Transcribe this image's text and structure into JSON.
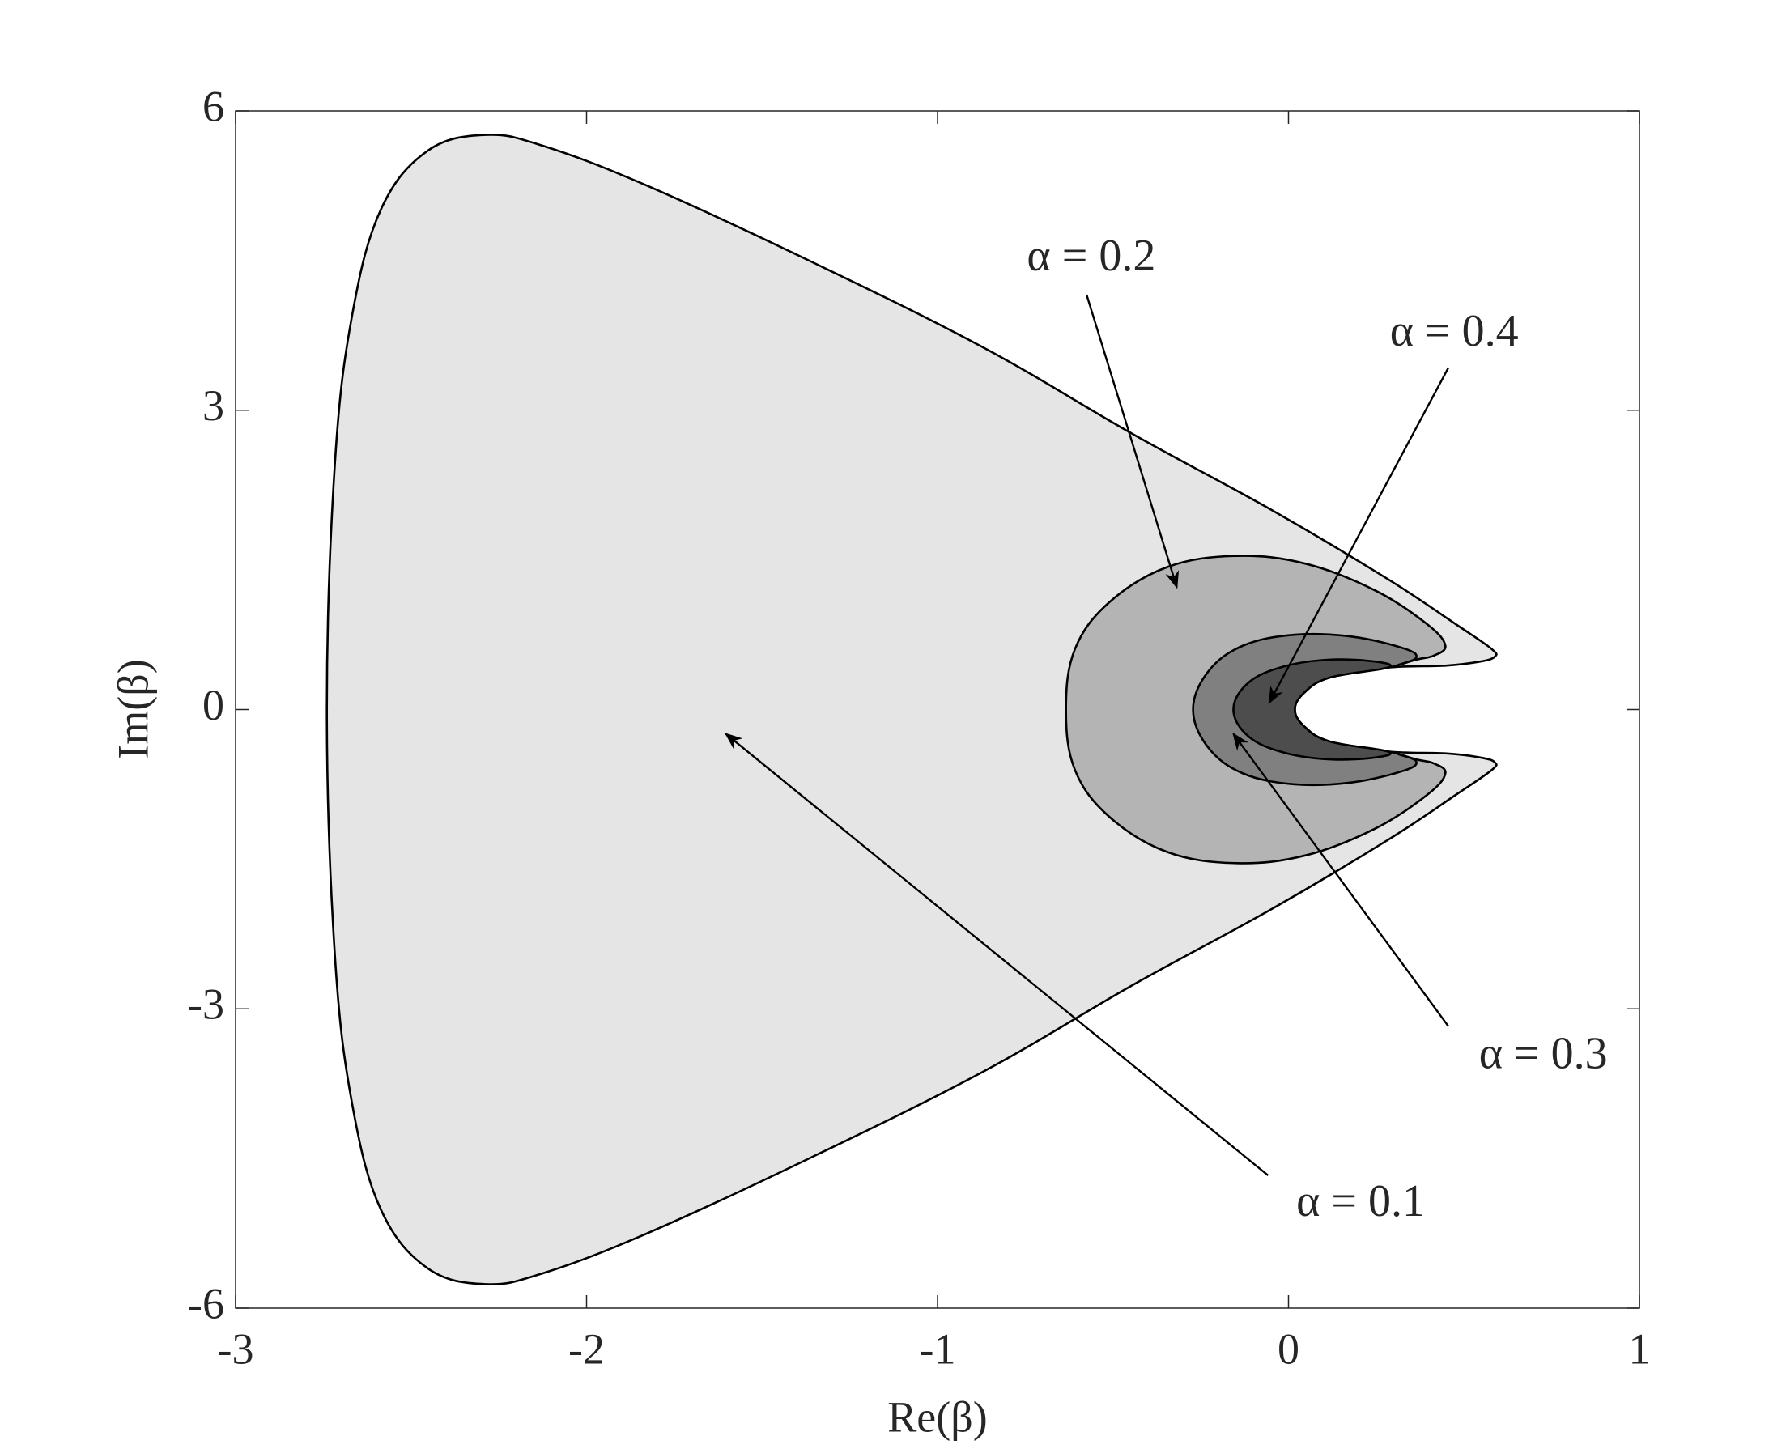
{
  "chart_data": {
    "type": "region",
    "x_label": "Re(β)",
    "y_label": "Im(β)",
    "xlim": [
      -3,
      1
    ],
    "ylim": [
      -6,
      6
    ],
    "xticks": [
      -3,
      -2,
      -1,
      0,
      1
    ],
    "yticks": [
      -6,
      -3,
      0,
      3,
      6
    ],
    "series": [
      {
        "name": "α = 0.1",
        "color": "#e5e5e5",
        "x": [
          -2.74,
          -2.717,
          -2.667,
          -2.585,
          -2.453,
          -2.288,
          -2.124,
          -1.827,
          -1.366,
          -0.87,
          -0.443,
          -0.048,
          0.282,
          0.479,
          0.578,
          0.588,
          0.545,
          0.447,
          0.282,
          0.117,
          0.045,
          0.018,
          0.045,
          0.117,
          0.282,
          0.447,
          0.545,
          0.588,
          0.578,
          0.479,
          0.282,
          -0.048,
          -0.443,
          -0.87,
          -1.366,
          -1.827,
          -2.124,
          -2.288,
          -2.453,
          -2.585,
          -2.667,
          -2.717
        ],
        "values": [
          0,
          2.47,
          3.97,
          5.02,
          5.6,
          5.76,
          5.65,
          5.25,
          4.5,
          3.63,
          2.76,
          2.0,
          1.31,
          0.85,
          0.61,
          0.53,
          0.48,
          0.44,
          0.42,
          0.32,
          0.17,
          0,
          -0.17,
          -0.32,
          -0.42,
          -0.44,
          -0.48,
          -0.53,
          -0.61,
          -0.85,
          -1.31,
          -2.0,
          -2.76,
          -3.63,
          -4.5,
          -5.25,
          -5.65,
          -5.76,
          -5.6,
          -5.02,
          -3.97,
          -2.47
        ]
      },
      {
        "name": "α = 0.2",
        "color": "#b4b4b4",
        "x": [
          -0.634,
          -0.608,
          -0.509,
          -0.344,
          -0.147,
          0.051,
          0.249,
          0.397,
          0.447,
          0.414,
          0.364,
          0.282,
          0.117,
          0.045,
          0.018,
          0.045,
          0.117,
          0.282,
          0.364,
          0.414,
          0.447,
          0.397,
          0.249,
          0.051,
          -0.147,
          -0.344,
          -0.509,
          -0.608
        ],
        "values": [
          0,
          0.61,
          1.08,
          1.43,
          1.54,
          1.46,
          1.19,
          0.85,
          0.64,
          0.54,
          0.5,
          0.42,
          0.32,
          0.17,
          0,
          -0.17,
          -0.32,
          -0.42,
          -0.5,
          -0.54,
          -0.64,
          -0.85,
          -1.19,
          -1.46,
          -1.54,
          -1.43,
          -1.08,
          -0.61
        ]
      },
      {
        "name": "α = 0.3",
        "color": "#808080",
        "x": [
          -0.272,
          -0.229,
          -0.13,
          0.018,
          0.183,
          0.331,
          0.364,
          0.315,
          0.282,
          0.117,
          0.045,
          0.018,
          0.045,
          0.117,
          0.282,
          0.315,
          0.364,
          0.331,
          0.183,
          0.018,
          -0.13,
          -0.229
        ],
        "values": [
          0,
          0.38,
          0.64,
          0.75,
          0.73,
          0.61,
          0.52,
          0.45,
          0.42,
          0.32,
          0.17,
          0,
          -0.17,
          -0.32,
          -0.42,
          -0.45,
          -0.52,
          -0.61,
          -0.73,
          -0.75,
          -0.64,
          -0.38
        ]
      },
      {
        "name": "α = 0.4",
        "color": "#4d4d4d",
        "x": [
          -0.157,
          -0.114,
          -0.015,
          0.117,
          0.249,
          0.282,
          0.117,
          0.045,
          0.018,
          0.045,
          0.117,
          0.282,
          0.249,
          0.117,
          -0.015,
          -0.114
        ],
        "values": [
          0,
          0.27,
          0.43,
          0.5,
          0.48,
          0.42,
          0.32,
          0.17,
          0,
          -0.17,
          -0.32,
          -0.42,
          -0.48,
          -0.5,
          -0.43,
          -0.27
        ]
      }
    ]
  }
}
